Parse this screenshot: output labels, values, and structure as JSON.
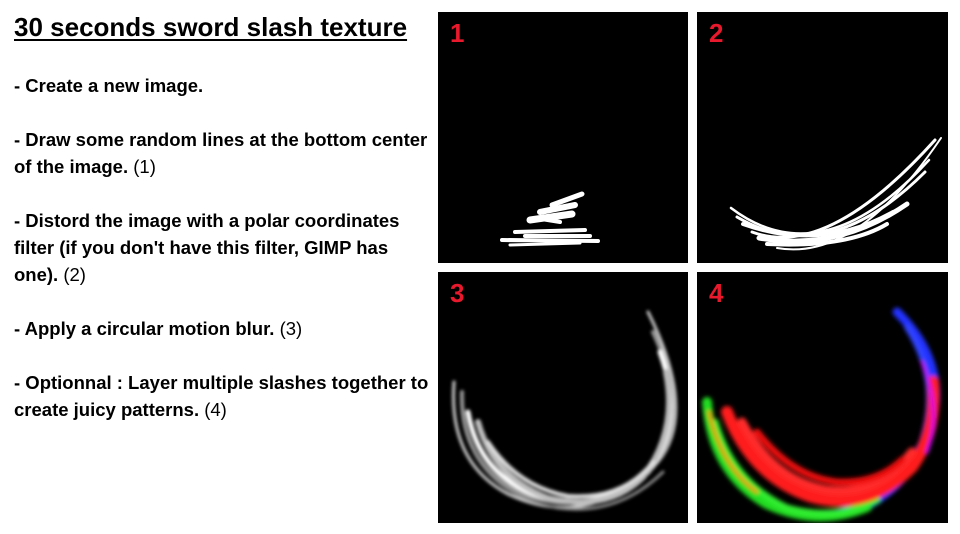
{
  "title": "30 seconds sword slash texture",
  "steps": [
    {
      "text": "- Create a new image.",
      "ref": ""
    },
    {
      "text": "- Draw some random lines at the bottom center of the image.",
      "ref": "(1)"
    },
    {
      "text": "- Distord the image with a polar coordinates filter (if you don't have this filter, GIMP has one).",
      "ref": "(2)"
    },
    {
      "text": "- Apply a circular motion blur.",
      "ref": "(3)"
    },
    {
      "text": "- Optionnal : Layer multiple slashes together to create juicy patterns.",
      "ref": "(4)"
    }
  ],
  "panels": [
    {
      "number": "1"
    },
    {
      "number": "2"
    },
    {
      "number": "3"
    },
    {
      "number": "4"
    }
  ],
  "colors": {
    "panel_number": "#e8192c",
    "panel_bg": "#000000",
    "layer_red": "#ff1a1a",
    "layer_green": "#22dd22",
    "layer_blue": "#2233ff"
  }
}
